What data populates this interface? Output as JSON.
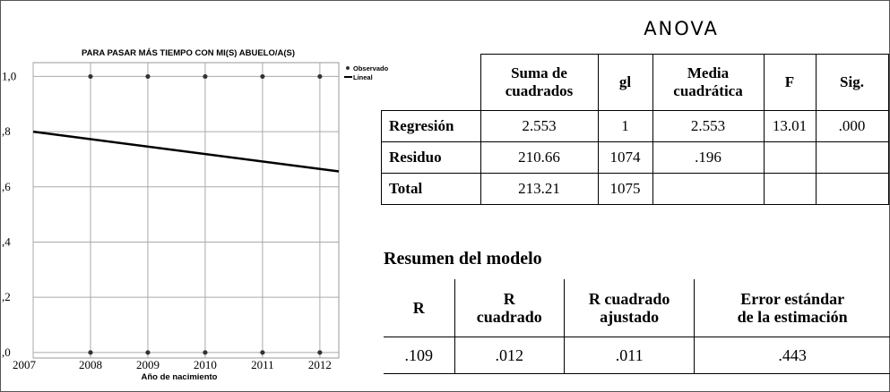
{
  "chart_data": {
    "type": "scatter",
    "title": "PARA PASAR MÁS TIEMPO CON MI(S) ABUELO/A(S)",
    "x_label": "Año de nacimiento",
    "series": [
      {
        "name": "Observado",
        "type": "scatter",
        "color": "#333333",
        "x": [
          2008,
          2009,
          2010,
          2011,
          2012,
          2008,
          2009,
          2010,
          2011,
          2012
        ],
        "values": [
          1,
          1,
          1,
          1,
          1,
          0,
          0,
          0,
          0,
          0
        ]
      },
      {
        "name": "Lineal",
        "type": "line",
        "color": "#000000",
        "x": [
          2007,
          2012.33
        ],
        "values": [
          0.8,
          0.656
        ]
      }
    ],
    "xlim": [
      2007,
      2012.33
    ],
    "xticks": [
      2007,
      2008,
      2009,
      2010,
      2011,
      2012
    ],
    "ylim": [
      -0.02,
      1.05
    ],
    "yticks": [
      {
        "value": 0,
        "label": ",0"
      },
      {
        "value": 0.2,
        "label": ",2"
      },
      {
        "value": 0.4,
        "label": ",4"
      },
      {
        "value": 0.6,
        "label": ",6"
      },
      {
        "value": 0.8,
        "label": ",8"
      },
      {
        "value": 1,
        "label": "1,0"
      }
    ],
    "grid": true,
    "legend": "top-right"
  },
  "anova": {
    "title": "ANOVA",
    "header": [
      "Suma de\ncuadrados",
      "gl",
      "Media\ncuadrática",
      "F",
      "Sig."
    ],
    "rows": [
      [
        "Regresión",
        "2.553",
        "1",
        "2.553",
        "13.01",
        ".000"
      ],
      [
        "Residuo",
        "210.66",
        "1074",
        ".196"
      ],
      [
        "Total",
        "213.21",
        "1075"
      ]
    ]
  },
  "model_summary": {
    "title": "Resumen del modelo",
    "header": [
      "R",
      "R\ncuadrado",
      "R cuadrado\najustado",
      "Error estándar\nde la estimación"
    ],
    "rows": [
      [
        ".109",
        ".012",
        ".011",
        ".443"
      ]
    ]
  }
}
